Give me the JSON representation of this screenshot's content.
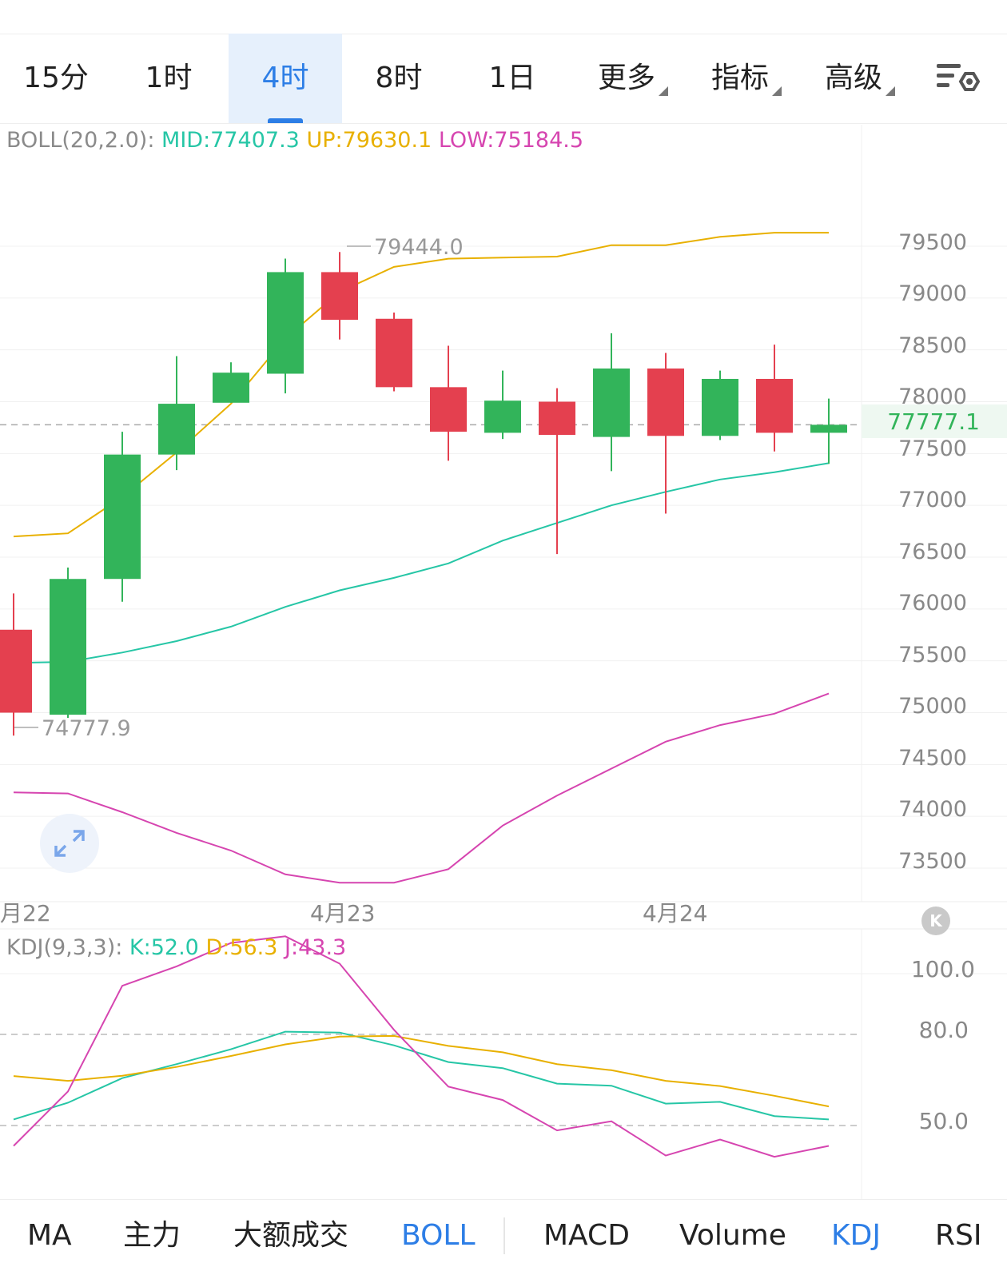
{
  "timeframes": {
    "items": [
      "15分",
      "1时",
      "4时",
      "8时",
      "1日"
    ],
    "active": "4时",
    "more_label": "更多",
    "indicators_label": "指标",
    "advanced_label": "高级"
  },
  "main_indicator": {
    "name": "BOLL(20,2.0):",
    "mid": "MID:77407.3",
    "up": "UP:79630.1",
    "low": "LOW:75184.5"
  },
  "price": {
    "current": "77777.1",
    "high_marker": "79444.0",
    "low_marker": "74777.9",
    "axis_ticks": [
      "79500",
      "79000",
      "78500",
      "78000",
      "77500",
      "77000",
      "76500",
      "76000",
      "75500",
      "75000",
      "74500",
      "74000",
      "73500"
    ]
  },
  "dates": [
    "月22",
    "4月23",
    "4月24"
  ],
  "sub_indicator": {
    "name": "KDJ(9,3,3):",
    "k": "K:52.0",
    "d": "D:56.3",
    "j": "J:43.3",
    "axis_ticks": [
      "100.0",
      "80.0",
      "50.0"
    ]
  },
  "bottom_tabs": {
    "items": [
      "MA",
      "主力",
      "大额成交",
      "BOLL",
      "MACD",
      "Volume",
      "KDJ",
      "RSI"
    ],
    "active": [
      "BOLL",
      "KDJ"
    ]
  },
  "colors": {
    "up_candle": "#32b45a",
    "down_candle": "#e4404f",
    "boll_mid": "#26c6a6",
    "boll_up": "#e8b000",
    "boll_low": "#d645b0",
    "accent": "#2d7ee6"
  },
  "chart_data": [
    {
      "type": "candlestick",
      "title": "",
      "x_labels": [
        "月22",
        "4月23",
        "4月24"
      ],
      "y_range": [
        73200,
        80100
      ],
      "candles": [
        {
          "open": 75800,
          "close": 75000,
          "high": 76150,
          "low": 74777.9
        },
        {
          "open": 74980,
          "close": 76290,
          "high": 76400,
          "low": 74950
        },
        {
          "open": 76290,
          "close": 77490,
          "high": 77710,
          "low": 76070
        },
        {
          "open": 77490,
          "close": 77980,
          "high": 78440,
          "low": 77340
        },
        {
          "open": 77990,
          "close": 78280,
          "high": 78380,
          "low": 77990
        },
        {
          "open": 78270,
          "close": 79250,
          "high": 79380,
          "low": 78080
        },
        {
          "open": 79250,
          "close": 78790,
          "high": 79444.0,
          "low": 78600
        },
        {
          "open": 78800,
          "close": 78140,
          "high": 78860,
          "low": 78100
        },
        {
          "open": 78140,
          "close": 77710,
          "high": 78540,
          "low": 77430
        },
        {
          "open": 77700,
          "close": 78010,
          "high": 78300,
          "low": 77640
        },
        {
          "open": 78000,
          "close": 77680,
          "high": 78130,
          "low": 76530
        },
        {
          "open": 77660,
          "close": 78320,
          "high": 78660,
          "low": 77330
        },
        {
          "open": 78320,
          "close": 77670,
          "high": 78470,
          "low": 76920
        },
        {
          "open": 77670,
          "close": 78220,
          "high": 78300,
          "low": 77630
        },
        {
          "open": 78220,
          "close": 77700,
          "high": 78550,
          "low": 77520
        },
        {
          "open": 77700,
          "close": 77777.1,
          "high": 78030,
          "low": 77400
        }
      ],
      "series": [
        {
          "name": "UP",
          "values": [
            76700,
            76730,
            77080,
            77510,
            77980,
            78610,
            79060,
            79300,
            79380,
            79390,
            79400,
            79510,
            79510,
            79590,
            79630,
            79630.1
          ]
        },
        {
          "name": "MID",
          "values": [
            75480,
            75490,
            75580,
            75690,
            75830,
            76020,
            76180,
            76300,
            76440,
            76660,
            76830,
            77000,
            77130,
            77250,
            77320,
            77407.3
          ]
        },
        {
          "name": "LOW",
          "values": [
            74230,
            74220,
            74040,
            73840,
            73670,
            73440,
            73360,
            73360,
            73490,
            73910,
            74200,
            74460,
            74720,
            74880,
            74990,
            75184.5
          ]
        }
      ]
    },
    {
      "type": "line",
      "title": "",
      "y_range": [
        38,
        111
      ],
      "reference_lines": [
        80.0,
        50.0
      ],
      "series": [
        {
          "name": "K",
          "values": [
            52.0,
            57.5,
            65.6,
            70.2,
            75.1,
            80.9,
            80.6,
            76.4,
            70.9,
            68.9,
            63.8,
            63.1,
            57.2,
            57.8,
            53.1,
            52.0
          ]
        },
        {
          "name": "D",
          "values": [
            66.3,
            64.7,
            66.4,
            69.3,
            72.9,
            76.7,
            79.3,
            79.5,
            76.2,
            74.1,
            70.2,
            68.2,
            64.7,
            63.0,
            59.8,
            56.3
          ]
        },
        {
          "name": "J",
          "values": [
            43.3,
            61.2,
            96.0,
            102.4,
            110.1,
            112.3,
            103.3,
            81.5,
            62.8,
            58.4,
            48.4,
            51.4,
            40.1,
            45.4,
            39.7,
            43.3
          ]
        }
      ]
    }
  ]
}
